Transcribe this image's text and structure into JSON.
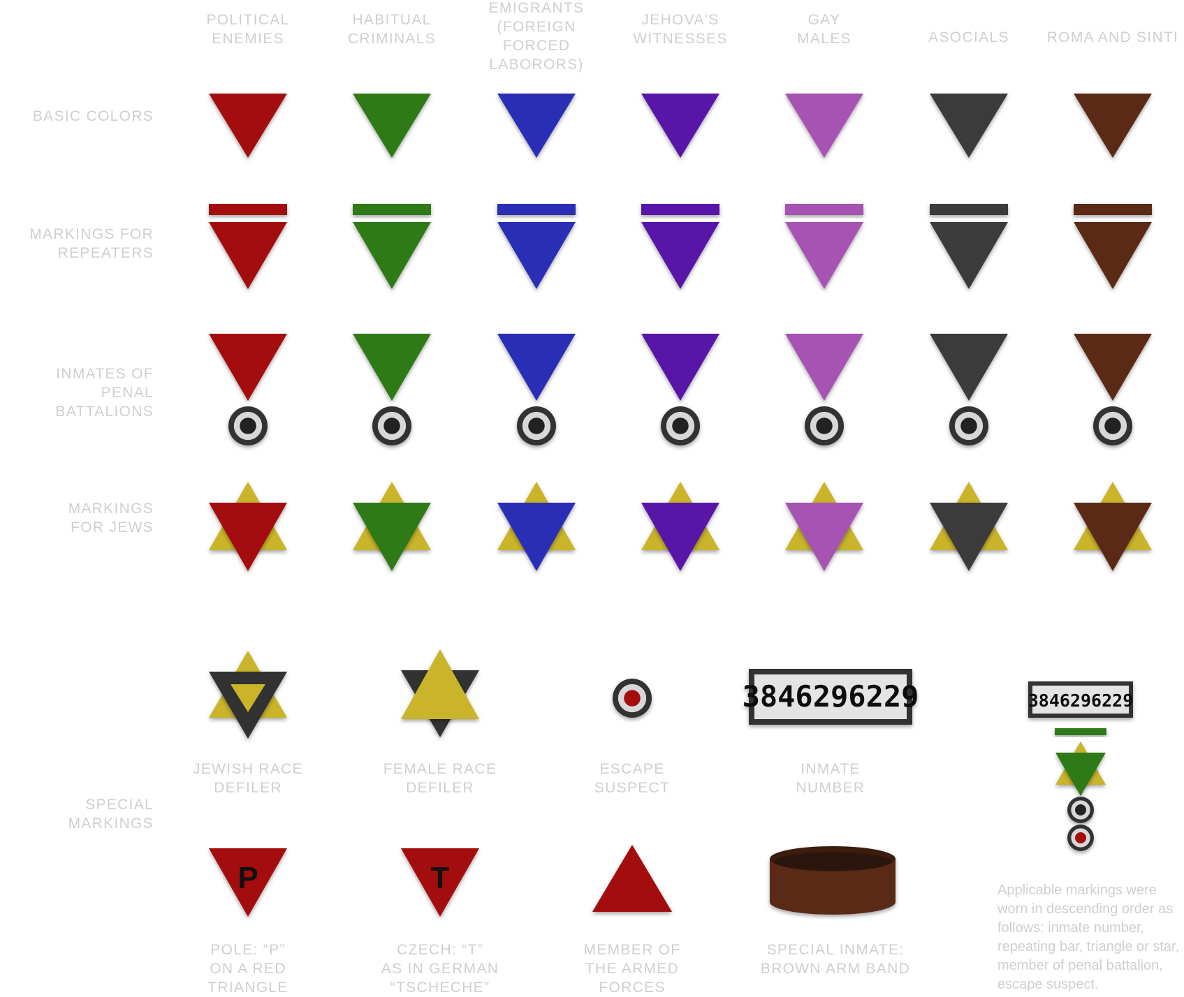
{
  "columns": [
    {
      "label": "POLITICAL\nENEMIES",
      "color": "#a3080a"
    },
    {
      "label": "HABITUAL\nCRIMINALS",
      "color": "#2f7a17"
    },
    {
      "label": "EMIGRANTS\n(FOREIGN FORCED\nLABORORS)",
      "color": "#2a2fb5"
    },
    {
      "label": "JEHOVA'S\nWITNESSES",
      "color": "#5814a8"
    },
    {
      "label": "GAY\nMALES",
      "color": "#a752b3"
    },
    {
      "label": "ASOCIALS",
      "color": "#3a3a3a"
    },
    {
      "label": "ROMA AND SINTI",
      "color": "#5a2a14"
    }
  ],
  "rows": [
    {
      "label": "BASIC COLORS",
      "kind": "basic"
    },
    {
      "label": "MARKINGS FOR\nREPEATERS",
      "kind": "repeater"
    },
    {
      "label": "INMATES OF PENAL\nBATTALIONS",
      "kind": "penal"
    },
    {
      "label": "MARKINGS\nFOR JEWS",
      "kind": "jew"
    }
  ],
  "special": {
    "label": "SPECIAL\nMARKINGS",
    "items": [
      {
        "caption": "JEWISH RACE\nDEFILER",
        "icon": "jewish-race-defiler-icon"
      },
      {
        "caption": "FEMALE RACE\nDEFILER",
        "icon": "female-race-defiler-icon"
      },
      {
        "caption": "ESCAPE\nSUSPECT",
        "icon": "escape-suspect-icon"
      },
      {
        "caption": "INMATE\nNUMBER",
        "icon": "inmate-number-patch-icon"
      },
      {
        "caption": "POLE: “P”\nON A RED\nTRIANGLE",
        "icon": "pole-triangle-icon",
        "letter": "P"
      },
      {
        "caption": "CZECH: “T”\nAS IN GERMAN\n“TSCHECHE”",
        "icon": "czech-triangle-icon",
        "letter": "T"
      },
      {
        "caption": "MEMBER OF\nTHE ARMED\nFORCES",
        "icon": "armed-forces-triangle-icon"
      },
      {
        "caption": "SPECIAL INMATE:\nBROWN ARM BAND",
        "icon": "brown-arm-band-icon"
      }
    ],
    "inmate_number": "3846296229",
    "order_note": "Applicable markings were worn in descending order as follows: inmate number, repeating bar, triangle or star, member of penal battalion, escape suspect."
  },
  "colors": {
    "yellow": "#c9b42a",
    "red": "#a3080a",
    "green": "#2f7a17",
    "dark": "#333333",
    "label": "#cfcfcf",
    "brown": "#5a2a14"
  }
}
